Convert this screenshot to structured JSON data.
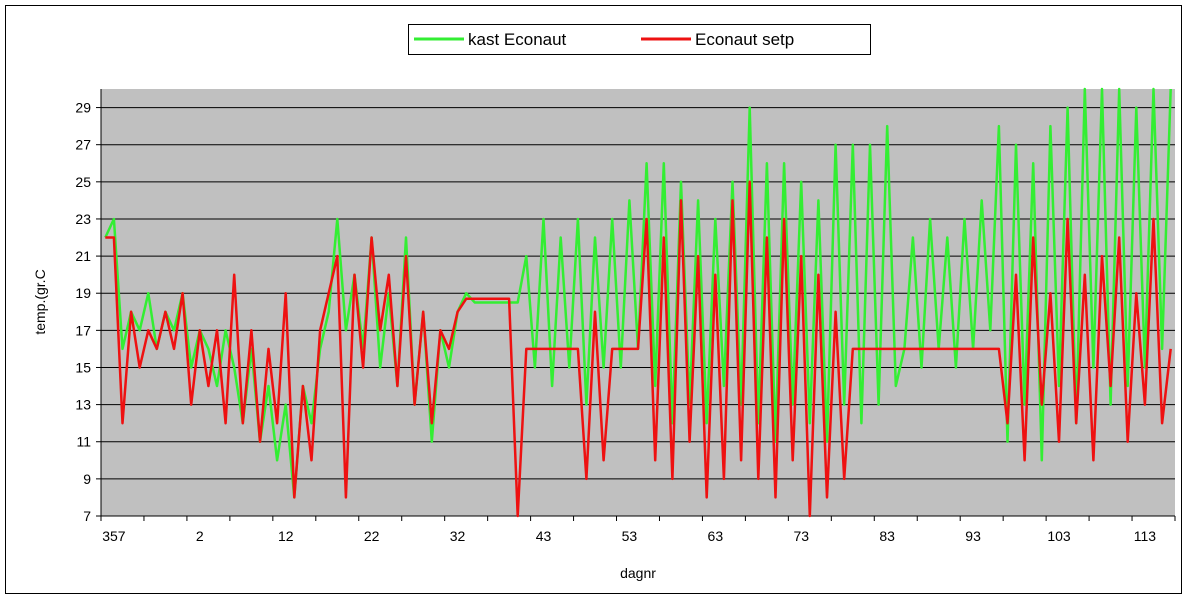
{
  "chart_data": {
    "type": "line",
    "x_label": "dagnr",
    "y_label": "temp.(gr.C",
    "ylim": [
      7,
      30
    ],
    "yticks": [
      7,
      9,
      11,
      13,
      15,
      17,
      19,
      21,
      23,
      25,
      27,
      29
    ],
    "grid": true,
    "legend": "top",
    "categories": [
      null,
      "357",
      null,
      null,
      null,
      null,
      null,
      null,
      null,
      null,
      null,
      "2",
      null,
      null,
      null,
      null,
      null,
      null,
      null,
      null,
      null,
      "12",
      null,
      null,
      null,
      null,
      null,
      null,
      null,
      null,
      null,
      "22",
      null,
      null,
      null,
      null,
      null,
      null,
      null,
      null,
      null,
      "32",
      null,
      null,
      null,
      null,
      null,
      null,
      null,
      null,
      null,
      "43",
      null,
      null,
      null,
      null,
      null,
      null,
      null,
      null,
      null,
      "53",
      null,
      null,
      null,
      null,
      null,
      null,
      null,
      null,
      null,
      "63",
      null,
      null,
      null,
      null,
      null,
      null,
      null,
      null,
      null,
      "73",
      null,
      null,
      null,
      null,
      null,
      null,
      null,
      null,
      null,
      "83",
      null,
      null,
      null,
      null,
      null,
      null,
      null,
      null,
      null,
      "93",
      null,
      null,
      null,
      null,
      null,
      null,
      null,
      null,
      null,
      "103",
      null,
      null,
      null,
      null,
      null,
      null,
      null,
      null,
      null,
      "113",
      null,
      null,
      null
    ],
    "series": [
      {
        "name": "kast Econaut",
        "color": "#33ee33",
        "values": [
          22,
          23,
          16,
          18,
          17,
          19,
          16,
          18,
          17,
          19,
          15,
          17,
          16,
          14,
          17,
          15,
          12,
          16,
          11,
          14,
          10,
          13,
          8,
          14,
          12,
          16,
          18,
          23,
          17,
          20,
          16,
          22,
          15,
          19,
          14,
          22,
          13,
          18,
          11,
          17,
          15,
          18,
          19,
          18.5,
          18.5,
          18.5,
          18.5,
          18.5,
          18.5,
          21,
          15,
          23,
          14,
          22,
          15,
          23,
          13,
          22,
          15,
          23,
          15,
          24,
          16,
          26,
          14,
          26,
          12,
          25,
          13,
          24,
          12,
          23,
          14,
          25,
          13,
          29,
          12,
          26,
          11,
          26,
          13,
          25,
          12,
          24,
          11,
          27,
          13,
          27,
          12,
          27,
          13,
          28,
          14,
          16,
          22,
          15,
          23,
          16,
          22,
          15,
          23,
          16,
          24,
          17,
          28,
          11,
          27,
          13,
          26,
          10,
          28,
          14,
          29,
          12,
          30,
          15,
          30,
          13,
          30,
          14,
          29,
          15,
          30,
          16,
          30
        ]
      },
      {
        "name": "Econaut setp",
        "color": "#ee1111",
        "values": [
          22,
          22,
          12,
          18,
          15,
          17,
          16,
          18,
          16,
          19,
          13,
          17,
          14,
          17,
          12,
          20,
          12,
          17,
          11,
          16,
          12,
          19,
          8,
          14,
          10,
          17,
          19,
          21,
          8,
          20,
          15,
          22,
          17,
          20,
          14,
          21,
          13,
          18,
          12,
          17,
          16,
          18,
          18.7,
          18.7,
          18.7,
          18.7,
          18.7,
          18.7,
          7,
          16,
          16,
          16,
          16,
          16,
          16,
          16,
          9,
          18,
          10,
          16,
          16,
          16,
          16,
          23,
          10,
          22,
          9,
          24,
          11,
          21,
          8,
          20,
          9,
          24,
          10,
          25,
          9,
          22,
          8,
          23,
          10,
          21,
          7,
          20,
          8,
          18,
          9,
          16,
          16,
          16,
          16,
          16,
          16,
          16,
          16,
          16,
          16,
          16,
          16,
          16,
          16,
          16,
          16,
          16,
          16,
          12,
          20,
          10,
          22,
          13,
          19,
          11,
          23,
          12,
          20,
          10,
          21,
          14,
          22,
          11,
          19,
          13,
          23,
          12,
          16
        ]
      }
    ]
  }
}
